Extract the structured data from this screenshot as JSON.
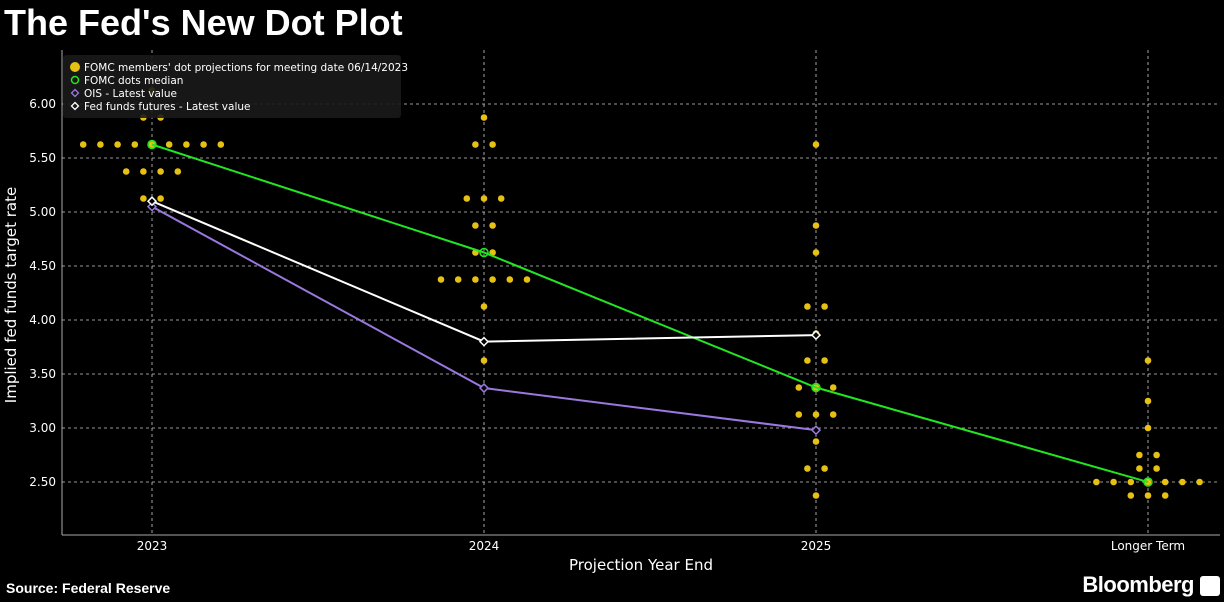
{
  "title": "The Fed's New Dot Plot",
  "source": "Source: Federal Reserve",
  "brand": "Bloomberg",
  "chart_data": {
    "type": "scatter",
    "xlabel": "Projection Year End",
    "ylabel": "Implied fed funds target rate",
    "categories": [
      "2023",
      "2024",
      "2025",
      "Longer Term"
    ],
    "yticks": [
      "2.50",
      "3.00",
      "3.50",
      "4.00",
      "4.50",
      "5.00",
      "5.50",
      "6.00"
    ],
    "ylim": [
      2.0,
      6.5
    ],
    "grid": true,
    "legend_position": "top-left",
    "legend": [
      {
        "label": "FOMC members' dot projections for meeting date 06/14/2023",
        "color": "#e6c012",
        "marker": "circle-filled"
      },
      {
        "label": "FOMC dots median",
        "color": "#22e622",
        "marker": "circle-open"
      },
      {
        "label": "OIS - Latest value",
        "color": "#9a78e0",
        "marker": "diamond"
      },
      {
        "label": "Fed funds futures - Latest value",
        "color": "#ffffff",
        "marker": "diamond"
      }
    ],
    "dots": [
      [
        [
          6.125,
          1
        ],
        [
          5.875,
          2
        ],
        [
          5.625,
          9
        ],
        [
          5.375,
          4
        ],
        [
          5.125,
          2
        ]
      ],
      [
        [
          5.875,
          1
        ],
        [
          5.625,
          2
        ],
        [
          5.125,
          3
        ],
        [
          4.875,
          2
        ],
        [
          4.625,
          2
        ],
        [
          4.375,
          6
        ],
        [
          4.125,
          1
        ],
        [
          3.625,
          1
        ]
      ],
      [
        [
          5.625,
          1
        ],
        [
          4.875,
          1
        ],
        [
          4.625,
          1
        ],
        [
          4.125,
          2
        ],
        [
          3.875,
          1
        ],
        [
          3.625,
          2
        ],
        [
          3.375,
          3
        ],
        [
          3.125,
          3
        ],
        [
          2.875,
          1
        ],
        [
          2.625,
          2
        ],
        [
          2.375,
          1
        ]
      ],
      [
        [
          3.625,
          1
        ],
        [
          3.25,
          1
        ],
        [
          3.0,
          1
        ],
        [
          2.75,
          2
        ],
        [
          2.625,
          2
        ],
        [
          2.5,
          7
        ],
        [
          2.375,
          3
        ]
      ]
    ],
    "series": [
      {
        "name": "FOMC dots median",
        "values": [
          5.625,
          4.625,
          3.375,
          2.5
        ],
        "color": "#22e622"
      },
      {
        "name": "OIS - Latest value",
        "values": [
          5.05,
          3.37,
          2.98,
          null
        ],
        "color": "#9a78e0"
      },
      {
        "name": "Fed funds futures - Latest value",
        "values": [
          5.1,
          3.8,
          3.86,
          null
        ],
        "color": "#ffffff"
      }
    ]
  }
}
